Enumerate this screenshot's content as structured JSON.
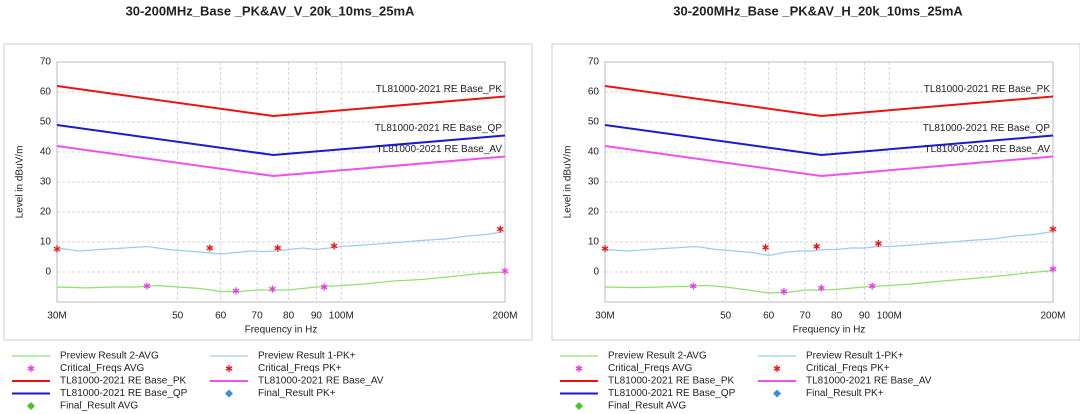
{
  "chart_data": [
    {
      "type": "line",
      "title": "30-200MHz_Base _PK&AV_V_20k_10ms_25mA",
      "x_label": "Frequency in Hz",
      "y_label": "Level in dBuV/m",
      "log_x": true,
      "grid": true,
      "xlim": [
        30000000,
        200000000
      ],
      "ylim": [
        -10,
        70
      ],
      "xticks": [
        {
          "value": 30000000,
          "label": "30M"
        },
        {
          "value": 50000000,
          "label": "50"
        },
        {
          "value": 60000000,
          "label": "60"
        },
        {
          "value": 70000000,
          "label": "70"
        },
        {
          "value": 80000000,
          "label": "80"
        },
        {
          "value": 90000000,
          "label": "90"
        },
        {
          "value": 100000000,
          "label": "100M"
        },
        {
          "value": 200000000,
          "label": "200M"
        }
      ],
      "yticks": [
        0,
        10,
        20,
        30,
        40,
        50,
        60,
        70
      ],
      "series": [
        {
          "name": "Preview Result 2-AVG",
          "style": "line",
          "color": "#8fe070",
          "x": [
            30000000,
            34000000,
            38000000,
            42000000,
            46000000,
            50000000,
            55000000,
            60000000,
            65000000,
            70000000,
            75000000,
            80000000,
            90000000,
            100000000,
            110000000,
            125000000,
            140000000,
            160000000,
            180000000,
            200000000
          ],
          "values": [
            -5,
            -5.3,
            -5,
            -5,
            -4.5,
            -5,
            -5.5,
            -6.5,
            -6.5,
            -6,
            -6,
            -6,
            -5,
            -4.5,
            -4,
            -3,
            -2.5,
            -1.5,
            -0.5,
            0
          ]
        },
        {
          "name": "Preview Result 1-PK+",
          "style": "line",
          "color": "#9ccbf0",
          "x": [
            30000000,
            33000000,
            36000000,
            40000000,
            44000000,
            48000000,
            52000000,
            56000000,
            60000000,
            64000000,
            68000000,
            72000000,
            76000000,
            80000000,
            85000000,
            90000000,
            95000000,
            100000000,
            110000000,
            120000000,
            130000000,
            140000000,
            155000000,
            170000000,
            185000000,
            200000000
          ],
          "values": [
            8,
            7,
            7.5,
            8,
            8.5,
            7.5,
            7,
            6.5,
            6,
            6.5,
            7,
            6.8,
            7,
            7.5,
            8,
            7.5,
            8,
            8.5,
            9,
            9.5,
            10,
            10.5,
            11,
            12,
            12.5,
            13.5
          ]
        },
        {
          "name": "Critical_Freqs AVG",
          "style": "star",
          "color": "#ee33ee",
          "x": [
            43900000,
            64000000,
            74700000,
            93000000,
            200000000
          ],
          "values": [
            -4.7,
            -6.3,
            -5.7,
            -5,
            0.3
          ]
        },
        {
          "name": "Critical_Freqs PK+",
          "style": "star",
          "color": "#ee1111",
          "x": [
            30000000,
            57300000,
            76400000,
            97000000,
            196000000
          ],
          "values": [
            7.7,
            8,
            8,
            8.7,
            14.3
          ]
        },
        {
          "name": "TL81000-2021  RE Base_PK",
          "style": "line",
          "color": "#ee1111",
          "x": [
            30000000,
            75000000,
            200000000
          ],
          "values": [
            62,
            52,
            58.5
          ]
        },
        {
          "name": "TL81000-2021 RE Base_AV",
          "style": "line",
          "color": "#f050f0",
          "x": [
            30000000,
            75000000,
            200000000
          ],
          "values": [
            42,
            32,
            38.5
          ]
        },
        {
          "name": "TL81000-2021  RE Base_QP",
          "style": "line",
          "color": "#1a1ad0",
          "x": [
            30000000,
            75000000,
            200000000
          ],
          "values": [
            49,
            39,
            45.5
          ]
        },
        {
          "name": "Final_Result PK+",
          "style": "diamond",
          "color": "#3a8fd0",
          "x": [],
          "values": []
        },
        {
          "name": "Final_Result AVG",
          "style": "diamond",
          "color": "#4cbf2c",
          "x": [],
          "values": []
        }
      ]
    },
    {
      "type": "line",
      "title": "30-200MHz_Base _PK&AV_H_20k_10ms_25mA",
      "x_label": "Frequency in Hz",
      "y_label": "Level in dBuV/m",
      "log_x": true,
      "grid": true,
      "xlim": [
        30000000,
        200000000
      ],
      "ylim": [
        -10,
        70
      ],
      "xticks": [
        {
          "value": 30000000,
          "label": "30M"
        },
        {
          "value": 50000000,
          "label": "50"
        },
        {
          "value": 60000000,
          "label": "60"
        },
        {
          "value": 70000000,
          "label": "70"
        },
        {
          "value": 80000000,
          "label": "80"
        },
        {
          "value": 90000000,
          "label": "90"
        },
        {
          "value": 100000000,
          "label": "100M"
        },
        {
          "value": 200000000,
          "label": "200M"
        }
      ],
      "yticks": [
        0,
        10,
        20,
        30,
        40,
        50,
        60,
        70
      ],
      "series": [
        {
          "name": "Preview Result 2-AVG",
          "style": "line",
          "color": "#8fe070",
          "x": [
            30000000,
            34000000,
            38000000,
            42000000,
            46000000,
            50000000,
            55000000,
            60000000,
            65000000,
            70000000,
            75000000,
            80000000,
            90000000,
            100000000,
            110000000,
            125000000,
            140000000,
            160000000,
            180000000,
            200000000
          ],
          "values": [
            -5,
            -5.2,
            -5,
            -4.8,
            -4.5,
            -5,
            -6,
            -7,
            -6.8,
            -6,
            -6,
            -5.8,
            -5,
            -4.5,
            -4,
            -3,
            -2.3,
            -1.3,
            -0.3,
            0.5
          ]
        },
        {
          "name": "Preview Result 1-PK+",
          "style": "line",
          "color": "#9ccbf0",
          "x": [
            30000000,
            33000000,
            36000000,
            40000000,
            44000000,
            48000000,
            52000000,
            56000000,
            60000000,
            64000000,
            68000000,
            72000000,
            76000000,
            80000000,
            85000000,
            90000000,
            95000000,
            100000000,
            110000000,
            120000000,
            130000000,
            140000000,
            155000000,
            170000000,
            185000000,
            200000000
          ],
          "values": [
            7.5,
            7,
            7.5,
            8,
            8.5,
            7.5,
            7,
            6.5,
            5.5,
            6.5,
            7,
            7,
            7.5,
            7.5,
            8,
            8,
            8.5,
            8.5,
            9,
            9.5,
            10,
            10.5,
            11,
            12,
            12.5,
            13.5
          ]
        },
        {
          "name": "Critical_Freqs AVG",
          "style": "star",
          "color": "#ee33ee",
          "x": [
            43600000,
            64000000,
            75000000,
            93000000,
            200000000
          ],
          "values": [
            -4.7,
            -6.5,
            -5.3,
            -4.7,
            1
          ]
        },
        {
          "name": "Critical_Freqs PK+",
          "style": "star",
          "color": "#ee1111",
          "x": [
            30000000,
            59200000,
            73500000,
            95500000,
            200000000
          ],
          "values": [
            7.8,
            8.2,
            8.5,
            9.5,
            14.3
          ]
        },
        {
          "name": "TL81000-2021  RE Base_PK",
          "style": "line",
          "color": "#ee1111",
          "x": [
            30000000,
            75000000,
            200000000
          ],
          "values": [
            62,
            52,
            58.5
          ]
        },
        {
          "name": "TL81000-2021 RE Base_AV",
          "style": "line",
          "color": "#f050f0",
          "x": [
            30000000,
            75000000,
            200000000
          ],
          "values": [
            42,
            32,
            38.5
          ]
        },
        {
          "name": "TL81000-2021  RE Base_QP",
          "style": "line",
          "color": "#1a1ad0",
          "x": [
            30000000,
            75000000,
            200000000
          ],
          "values": [
            49,
            39,
            45.5
          ]
        },
        {
          "name": "Final_Result PK+",
          "style": "diamond",
          "color": "#3a8fd0",
          "x": [],
          "values": []
        },
        {
          "name": "Final_Result AVG",
          "style": "diamond",
          "color": "#4cbf2c",
          "x": [],
          "values": []
        }
      ]
    }
  ]
}
